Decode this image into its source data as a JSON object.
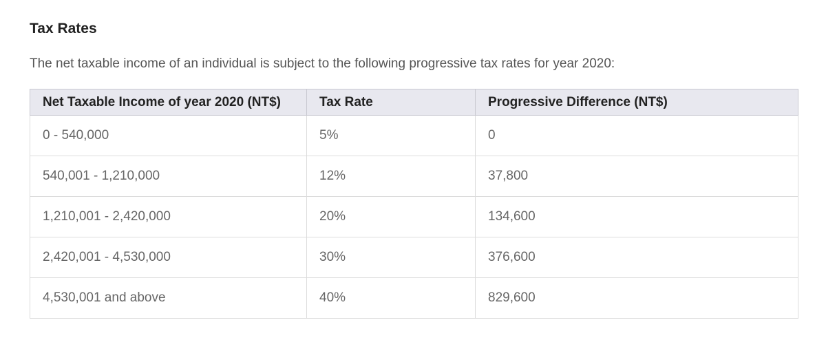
{
  "title": "Tax Rates",
  "intro": "The net taxable income of an individual is subject to the following progressive tax rates for year 2020:",
  "table": {
    "header": [
      "Net Taxable Income of year 2020 (NT$)",
      "Tax Rate",
      "Progressive Difference (NT$)"
    ],
    "rows": [
      [
        "0 - 540,000",
        "5%",
        "0"
      ],
      [
        "540,001 - 1,210,000",
        "12%",
        "37,800"
      ],
      [
        "1,210,001 - 2,420,000",
        "20%",
        "134,600"
      ],
      [
        "2,420,001 - 4,530,000",
        "30%",
        "376,600"
      ],
      [
        "4,530,001 and above",
        "40%",
        "829,600"
      ]
    ]
  }
}
